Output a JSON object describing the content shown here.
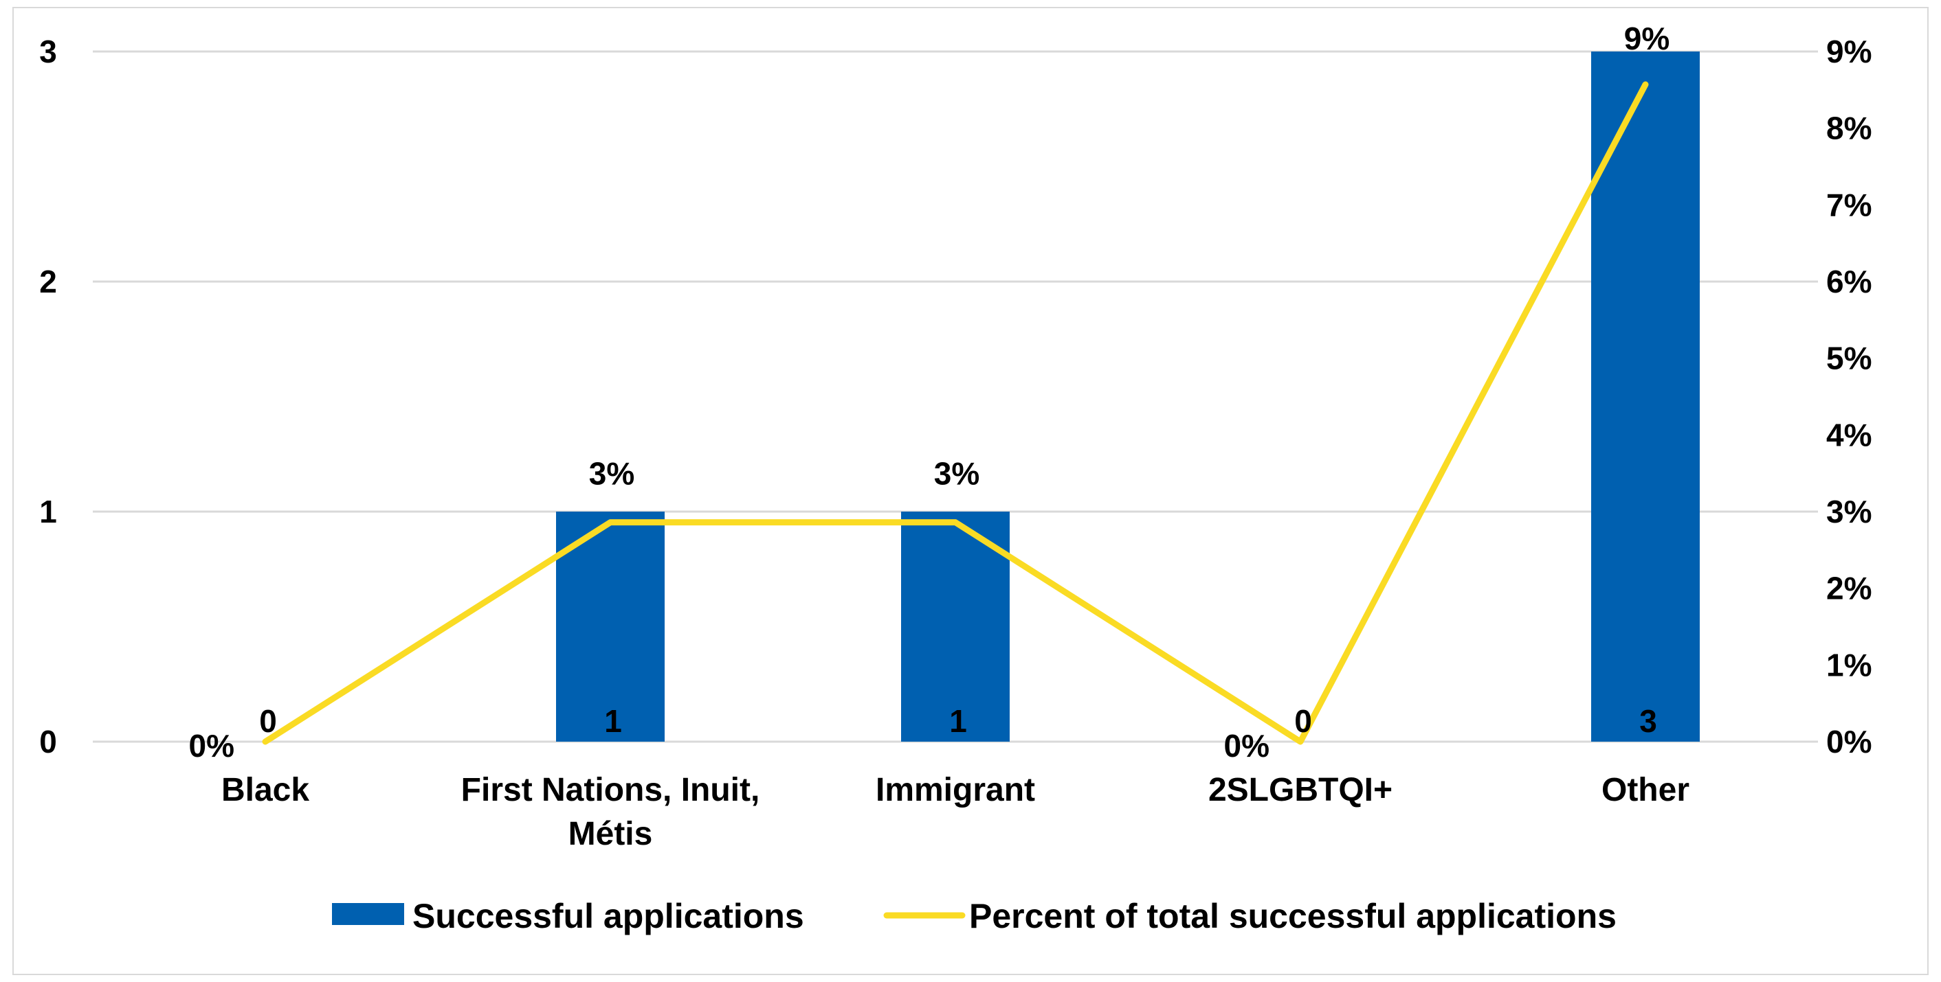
{
  "chart_data": {
    "type": "bar+line",
    "title": "",
    "categories": [
      "Black",
      "First Nations, Inuit, Métis",
      "Immigrant",
      "2SLGBTQI+",
      "Other"
    ],
    "category_label_lines": [
      [
        "Black"
      ],
      [
        "First Nations, Inuit,",
        "Métis"
      ],
      [
        "Immigrant"
      ],
      [
        "2SLGBTQI+"
      ],
      [
        "Other"
      ]
    ],
    "series": [
      {
        "name": "Successful applications",
        "type": "bar",
        "axis": "left",
        "color": "#0060B0",
        "values": [
          0,
          1,
          1,
          0,
          3
        ],
        "data_labels": [
          "0",
          "1",
          "1",
          "0",
          "3"
        ]
      },
      {
        "name": "Percent of total successful applications",
        "type": "line",
        "axis": "right",
        "color": "#FADB24",
        "values": [
          0,
          2.86,
          2.86,
          0,
          8.57
        ],
        "data_labels": [
          "0%",
          "3%",
          "3%",
          "0%",
          "9%"
        ]
      }
    ],
    "y_left": {
      "min": 0,
      "max": 3,
      "ticks": [
        "0",
        "1",
        "2",
        "3"
      ]
    },
    "y_right": {
      "min": 0,
      "max": 9,
      "ticks": [
        "0%",
        "1%",
        "2%",
        "3%",
        "4%",
        "5%",
        "6%",
        "7%",
        "8%",
        "9%"
      ]
    },
    "grid": true,
    "gridline_color": "#d9d9d9",
    "legend_position": "bottom"
  }
}
